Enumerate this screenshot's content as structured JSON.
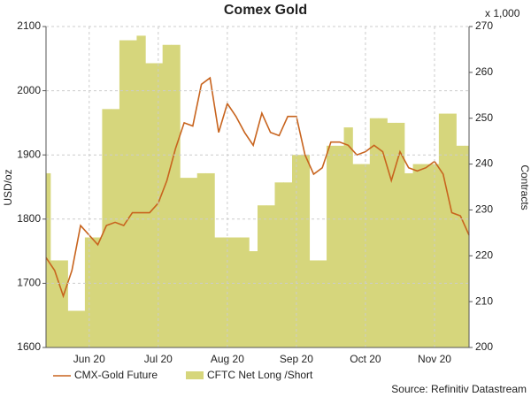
{
  "chart_data": {
    "type": "line",
    "title": "Comex Gold",
    "y_label": "USD/oz",
    "y2_label": "Contracts",
    "y2_unit_note": "x 1,000",
    "source": "Source: Refinitiv Datastream",
    "categories": [
      null,
      null,
      null,
      null,
      null,
      "Jun 20",
      null,
      null,
      null,
      null,
      null,
      null,
      null,
      "Jul 20",
      null,
      null,
      null,
      null,
      null,
      null,
      null,
      "Aug 20",
      null,
      null,
      null,
      null,
      null,
      null,
      null,
      "Sep 20",
      null,
      null,
      null,
      null,
      null,
      null,
      null,
      "Oct 20",
      null,
      null,
      null,
      null,
      null,
      null,
      null,
      "Nov 20",
      null,
      null,
      null,
      null
    ],
    "ylim": [
      1600,
      2100
    ],
    "yticks": [
      1600,
      1700,
      1800,
      1900,
      2000,
      2100
    ],
    "y2lim": [
      200,
      270
    ],
    "y2ticks": [
      200,
      210,
      220,
      230,
      240,
      250,
      260,
      270
    ],
    "grid": true,
    "legend": "bottom",
    "series": [
      {
        "name": "CMX-Gold Future",
        "type": "line",
        "color": "#c8641e",
        "values": [
          1740,
          1720,
          1680,
          1720,
          1790,
          1775,
          1760,
          1790,
          1795,
          1790,
          1810,
          1810,
          1810,
          1825,
          1860,
          1910,
          1950,
          1945,
          2010,
          2020,
          1935,
          1980,
          1960,
          1935,
          1915,
          1965,
          1935,
          1930,
          1960,
          1960,
          1900,
          1870,
          1880,
          1920,
          1920,
          1915,
          1900,
          1905,
          1915,
          1905,
          1860,
          1905,
          1880,
          1875,
          1880,
          1890,
          1870,
          1810,
          1805,
          1775
        ]
      },
      {
        "name": "CFTC Net Long /Short",
        "type": "area",
        "axis": "y2",
        "color": "#d6d67c",
        "values": [
          238,
          219,
          219,
          208,
          208,
          224,
          224,
          252,
          252,
          267,
          267,
          268,
          262,
          262,
          266,
          266,
          237,
          237,
          238,
          238,
          224,
          224,
          224,
          224,
          221,
          231,
          231,
          236,
          236,
          242,
          242,
          219,
          219,
          244,
          244,
          248,
          240,
          240,
          250,
          250,
          249,
          249,
          238,
          240,
          240,
          240,
          251,
          251,
          244,
          244
        ]
      }
    ]
  }
}
